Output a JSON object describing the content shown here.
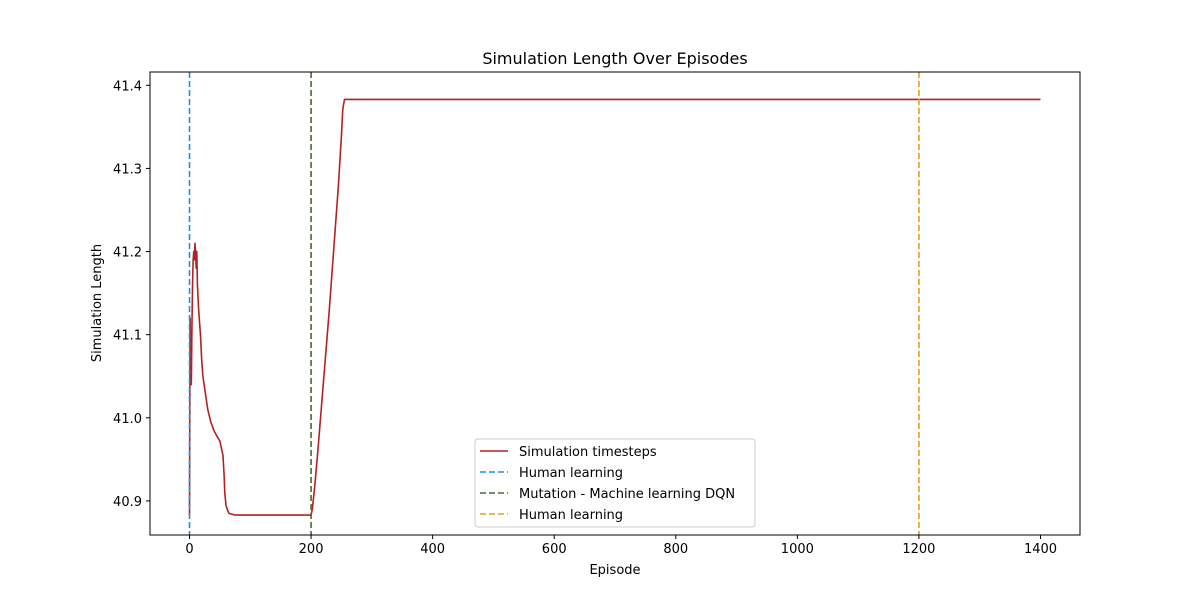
{
  "chart_data": {
    "type": "line",
    "title": "Simulation Length Over Episodes",
    "xlabel": "Episode",
    "ylabel": "Simulation Length",
    "xlim": [
      -65,
      1465
    ],
    "ylim": [
      40.859,
      41.416
    ],
    "xticks": [
      0,
      200,
      400,
      600,
      800,
      1000,
      1200,
      1400
    ],
    "yticks": [
      40.9,
      41.0,
      41.1,
      41.2,
      41.3,
      41.4
    ],
    "ytick_labels": [
      "40.9",
      "41.0",
      "41.1",
      "41.2",
      "41.3",
      "41.4"
    ],
    "grid": false,
    "legend_position": "lower center",
    "series": [
      {
        "name": "Simulation timesteps",
        "color": "#b22222",
        "style": "solid",
        "x": [
          0,
          1,
          2,
          3,
          4,
          5,
          6,
          7,
          8,
          9,
          10,
          11,
          12,
          13,
          15,
          18,
          20,
          22,
          25,
          28,
          30,
          35,
          40,
          45,
          50,
          52,
          55,
          57,
          58,
          60,
          62,
          65,
          70,
          75,
          80,
          100,
          150,
          200,
          202,
          205,
          210,
          220,
          230,
          240,
          245,
          250,
          252,
          253,
          255,
          260,
          300,
          400,
          600,
          800,
          1000,
          1200,
          1400
        ],
        "y": [
          40.883,
          41.12,
          41.05,
          41.04,
          41.11,
          41.16,
          41.19,
          41.2,
          41.19,
          41.21,
          41.2,
          41.18,
          41.2,
          41.16,
          41.13,
          41.1,
          41.07,
          41.05,
          41.035,
          41.02,
          41.01,
          40.995,
          40.985,
          40.978,
          40.972,
          40.965,
          40.955,
          40.93,
          40.91,
          40.895,
          40.89,
          40.885,
          40.884,
          40.883,
          40.883,
          40.883,
          40.883,
          40.883,
          40.89,
          40.91,
          40.95,
          41.04,
          41.13,
          41.23,
          41.28,
          41.34,
          41.37,
          41.375,
          41.383,
          41.383,
          41.383,
          41.383,
          41.383,
          41.383,
          41.383,
          41.383,
          41.383
        ]
      }
    ],
    "vlines": [
      {
        "name": "Human learning",
        "x": 0,
        "color": "#1f8fdf",
        "style": "dashed"
      },
      {
        "name": "Mutation - Machine learning DQN",
        "x": 200,
        "color": "#4a6b2a",
        "style": "dashed"
      },
      {
        "name": "Human learning",
        "x": 1200,
        "color": "#e0a020",
        "style": "dashed"
      }
    ]
  }
}
